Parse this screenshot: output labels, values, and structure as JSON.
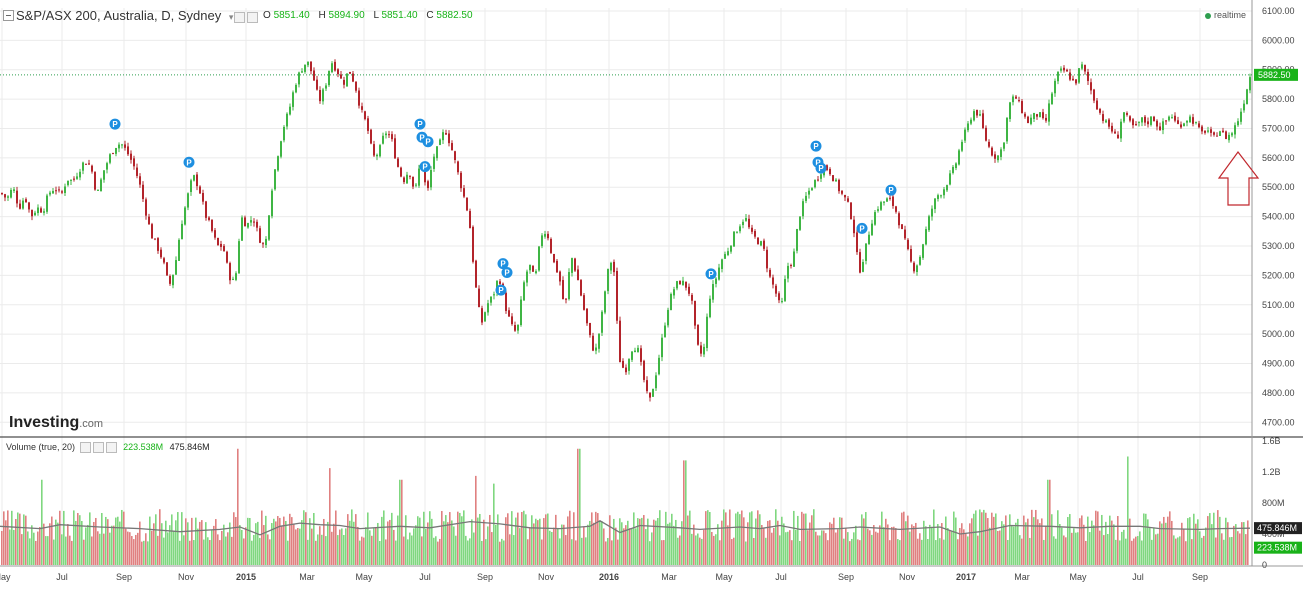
{
  "header": {
    "title": "S&P/ASX 200, Australia, D, Sydney",
    "open_label": "O",
    "open": "5851.40",
    "high_label": "H",
    "high": "5894.90",
    "low_label": "L",
    "low": "5851.40",
    "close_label": "C",
    "close": "5882.50",
    "realtime": "realtime",
    "dropdown_icon": "chevron-down-icon"
  },
  "volume_header": {
    "label": "Volume (true, 20)",
    "value": "223.538M",
    "ma_value": "475.846M"
  },
  "logo": {
    "brand": "Investing",
    "suffix": ".com"
  },
  "colors": {
    "up": "#3fb544",
    "down": "#b3242b",
    "volume_up": "#7fd77f",
    "volume_down": "#e08080",
    "ma_line": "#777777",
    "price_line": "#2e9e4f",
    "price_tag": "#19b219",
    "marker": "#1e8fe0",
    "arrow": "#c1272d",
    "grid": "#ebebeb"
  },
  "annotation": {
    "marker_text": "P",
    "arrow": "hollow up arrow pointing at recent lows"
  },
  "chart_data": [
    {
      "type": "candlestick",
      "title": "S&P/ASX 200, Australia, D, Sydney",
      "ylim": [
        4650,
        6110
      ],
      "y_ticks": [
        "6100.00",
        "6000.00",
        "5900.00",
        "5800.00",
        "5700.00",
        "5600.00",
        "5500.00",
        "5400.00",
        "5300.00",
        "5200.00",
        "5100.00",
        "5000.00",
        "4900.00",
        "4800.00",
        "4700.00"
      ],
      "x_ticks": [
        "May",
        "Jul",
        "Sep",
        "Nov",
        "2015",
        "Mar",
        "May",
        "Jul",
        "Sep",
        "Nov",
        "2016",
        "Mar",
        "May",
        "Jul",
        "Sep",
        "Nov",
        "2017",
        "Mar",
        "May",
        "Jul",
        "Sep"
      ],
      "current_price_label": "5882.50",
      "anchors": [
        [
          0,
          5480
        ],
        [
          6,
          5460
        ],
        [
          12,
          5500
        ],
        [
          18,
          5430
        ],
        [
          24,
          5470
        ],
        [
          30,
          5400
        ],
        [
          36,
          5430
        ],
        [
          42,
          5420
        ],
        [
          48,
          5480
        ],
        [
          54,
          5500
        ],
        [
          60,
          5470
        ],
        [
          66,
          5530
        ],
        [
          72,
          5520
        ],
        [
          78,
          5560
        ],
        [
          84,
          5590
        ],
        [
          90,
          5570
        ],
        [
          96,
          5470
        ],
        [
          102,
          5550
        ],
        [
          108,
          5600
        ],
        [
          114,
          5640
        ],
        [
          120,
          5650
        ],
        [
          126,
          5620
        ],
        [
          132,
          5580
        ],
        [
          138,
          5520
        ],
        [
          144,
          5430
        ],
        [
          150,
          5340
        ],
        [
          156,
          5300
        ],
        [
          162,
          5250
        ],
        [
          168,
          5160
        ],
        [
          174,
          5230
        ],
        [
          180,
          5370
        ],
        [
          186,
          5460
        ],
        [
          192,
          5540
        ],
        [
          198,
          5500
        ],
        [
          204,
          5410
        ],
        [
          210,
          5360
        ],
        [
          216,
          5300
        ],
        [
          222,
          5300
        ],
        [
          228,
          5200
        ],
        [
          234,
          5170
        ],
        [
          240,
          5400
        ],
        [
          246,
          5370
        ],
        [
          252,
          5400
        ],
        [
          258,
          5330
        ],
        [
          264,
          5290
        ],
        [
          270,
          5480
        ],
        [
          276,
          5600
        ],
        [
          282,
          5700
        ],
        [
          288,
          5760
        ],
        [
          294,
          5850
        ],
        [
          300,
          5900
        ],
        [
          306,
          5930
        ],
        [
          312,
          5880
        ],
        [
          318,
          5790
        ],
        [
          324,
          5840
        ],
        [
          330,
          5930
        ],
        [
          336,
          5900
        ],
        [
          342,
          5850
        ],
        [
          348,
          5900
        ],
        [
          354,
          5850
        ],
        [
          360,
          5760
        ],
        [
          366,
          5710
        ],
        [
          372,
          5600
        ],
        [
          378,
          5620
        ],
        [
          384,
          5690
        ],
        [
          390,
          5670
        ],
        [
          396,
          5580
        ],
        [
          402,
          5520
        ],
        [
          408,
          5560
        ],
        [
          414,
          5480
        ],
        [
          420,
          5600
        ],
        [
          426,
          5470
        ],
        [
          432,
          5600
        ],
        [
          438,
          5640
        ],
        [
          444,
          5700
        ],
        [
          450,
          5640
        ],
        [
          456,
          5560
        ],
        [
          462,
          5480
        ],
        [
          468,
          5400
        ],
        [
          474,
          5180
        ],
        [
          480,
          5030
        ],
        [
          486,
          5100
        ],
        [
          492,
          5130
        ],
        [
          498,
          5200
        ],
        [
          504,
          5100
        ],
        [
          510,
          5030
        ],
        [
          516,
          5000
        ],
        [
          522,
          5160
        ],
        [
          528,
          5240
        ],
        [
          534,
          5180
        ],
        [
          540,
          5340
        ],
        [
          546,
          5350
        ],
        [
          552,
          5250
        ],
        [
          558,
          5200
        ],
        [
          564,
          5080
        ],
        [
          570,
          5270
        ],
        [
          576,
          5200
        ],
        [
          582,
          5100
        ],
        [
          588,
          5000
        ],
        [
          594,
          4930
        ],
        [
          600,
          5040
        ],
        [
          606,
          5200
        ],
        [
          612,
          5270
        ],
        [
          618,
          4920
        ],
        [
          624,
          4870
        ],
        [
          630,
          4950
        ],
        [
          636,
          4960
        ],
        [
          642,
          4860
        ],
        [
          648,
          4760
        ],
        [
          654,
          4850
        ],
        [
          660,
          4960
        ],
        [
          666,
          5080
        ],
        [
          672,
          5150
        ],
        [
          678,
          5180
        ],
        [
          684,
          5170
        ],
        [
          690,
          5130
        ],
        [
          696,
          4960
        ],
        [
          702,
          4920
        ],
        [
          708,
          5120
        ],
        [
          714,
          5180
        ],
        [
          720,
          5250
        ],
        [
          726,
          5280
        ],
        [
          732,
          5330
        ],
        [
          738,
          5370
        ],
        [
          744,
          5400
        ],
        [
          750,
          5340
        ],
        [
          756,
          5320
        ],
        [
          762,
          5300
        ],
        [
          768,
          5200
        ],
        [
          774,
          5150
        ],
        [
          780,
          5080
        ],
        [
          786,
          5230
        ],
        [
          792,
          5250
        ],
        [
          798,
          5400
        ],
        [
          804,
          5460
        ],
        [
          810,
          5500
        ],
        [
          816,
          5530
        ],
        [
          822,
          5570
        ],
        [
          828,
          5560
        ],
        [
          834,
          5520
        ],
        [
          840,
          5480
        ],
        [
          846,
          5450
        ],
        [
          852,
          5380
        ],
        [
          858,
          5210
        ],
        [
          864,
          5280
        ],
        [
          870,
          5380
        ],
        [
          876,
          5430
        ],
        [
          882,
          5450
        ],
        [
          888,
          5460
        ],
        [
          894,
          5430
        ],
        [
          900,
          5360
        ],
        [
          906,
          5290
        ],
        [
          912,
          5220
        ],
        [
          918,
          5250
        ],
        [
          924,
          5340
        ],
        [
          930,
          5420
        ],
        [
          936,
          5470
        ],
        [
          942,
          5490
        ],
        [
          948,
          5530
        ],
        [
          954,
          5570
        ],
        [
          960,
          5650
        ],
        [
          966,
          5700
        ],
        [
          972,
          5760
        ],
        [
          978,
          5750
        ],
        [
          984,
          5670
        ],
        [
          990,
          5620
        ],
        [
          996,
          5600
        ],
        [
          1002,
          5640
        ],
        [
          1008,
          5780
        ],
        [
          1014,
          5810
        ],
        [
          1020,
          5770
        ],
        [
          1026,
          5720
        ],
        [
          1032,
          5740
        ],
        [
          1038,
          5750
        ],
        [
          1044,
          5710
        ],
        [
          1050,
          5810
        ],
        [
          1056,
          5880
        ],
        [
          1062,
          5900
        ],
        [
          1068,
          5880
        ],
        [
          1074,
          5850
        ],
        [
          1080,
          5920
        ],
        [
          1086,
          5870
        ],
        [
          1092,
          5810
        ],
        [
          1098,
          5760
        ],
        [
          1104,
          5720
        ],
        [
          1110,
          5700
        ],
        [
          1116,
          5660
        ],
        [
          1122,
          5760
        ],
        [
          1128,
          5720
        ],
        [
          1134,
          5700
        ],
        [
          1140,
          5730
        ],
        [
          1146,
          5720
        ],
        [
          1152,
          5740
        ],
        [
          1158,
          5700
        ],
        [
          1164,
          5720
        ],
        [
          1170,
          5750
        ],
        [
          1176,
          5710
        ],
        [
          1182,
          5720
        ],
        [
          1188,
          5740
        ],
        [
          1194,
          5720
        ],
        [
          1200,
          5680
        ],
        [
          1206,
          5700
        ],
        [
          1212,
          5660
        ],
        [
          1218,
          5700
        ],
        [
          1224,
          5670
        ],
        [
          1230,
          5680
        ],
        [
          1236,
          5720
        ],
        [
          1242,
          5780
        ],
        [
          1248,
          5870
        ],
        [
          1250,
          5882
        ]
      ],
      "markers_x": [
        115,
        189,
        420,
        422,
        428,
        425,
        503,
        507,
        501,
        816,
        818,
        821,
        862,
        891,
        711
      ],
      "markers_y": [
        5715,
        5585,
        5715,
        5670,
        5655,
        5570,
        5240,
        5210,
        5150,
        5640,
        5585,
        5565,
        5360,
        5490,
        5205
      ]
    },
    {
      "type": "bar",
      "title": "Volume (true, 20)",
      "ylim": [
        0,
        1600
      ],
      "y_ticks": [
        "0",
        "400M",
        "800M",
        "1.2B",
        "1.6B"
      ],
      "current_volume_label": "223.538M",
      "ma_label": "475.846M",
      "ma_anchors": [
        [
          0,
          500
        ],
        [
          40,
          470
        ],
        [
          60,
          520
        ],
        [
          100,
          490
        ],
        [
          140,
          470
        ],
        [
          180,
          430
        ],
        [
          220,
          460
        ],
        [
          240,
          490
        ],
        [
          260,
          390
        ],
        [
          280,
          500
        ],
        [
          300,
          540
        ],
        [
          320,
          520
        ],
        [
          340,
          510
        ],
        [
          360,
          470
        ],
        [
          400,
          500
        ],
        [
          430,
          480
        ],
        [
          470,
          560
        ],
        [
          500,
          530
        ],
        [
          530,
          480
        ],
        [
          560,
          470
        ],
        [
          590,
          500
        ],
        [
          600,
          570
        ],
        [
          620,
          420
        ],
        [
          640,
          510
        ],
        [
          680,
          480
        ],
        [
          700,
          460
        ],
        [
          740,
          490
        ],
        [
          760,
          470
        ],
        [
          780,
          510
        ],
        [
          800,
          460
        ],
        [
          840,
          470
        ],
        [
          860,
          490
        ],
        [
          900,
          460
        ],
        [
          940,
          490
        ],
        [
          960,
          400
        ],
        [
          980,
          430
        ],
        [
          1010,
          510
        ],
        [
          1050,
          500
        ],
        [
          1080,
          480
        ],
        [
          1110,
          500
        ],
        [
          1140,
          500
        ],
        [
          1160,
          470
        ],
        [
          1200,
          460
        ],
        [
          1220,
          470
        ],
        [
          1250,
          475
        ]
      ],
      "spikes_x": [
        237,
        329,
        578,
        684,
        1127,
        1048,
        475,
        493,
        400,
        41
      ],
      "spikes_v": [
        1500,
        1250,
        1500,
        1350,
        1400,
        1100,
        1150,
        1050,
        1100,
        1100
      ]
    }
  ]
}
